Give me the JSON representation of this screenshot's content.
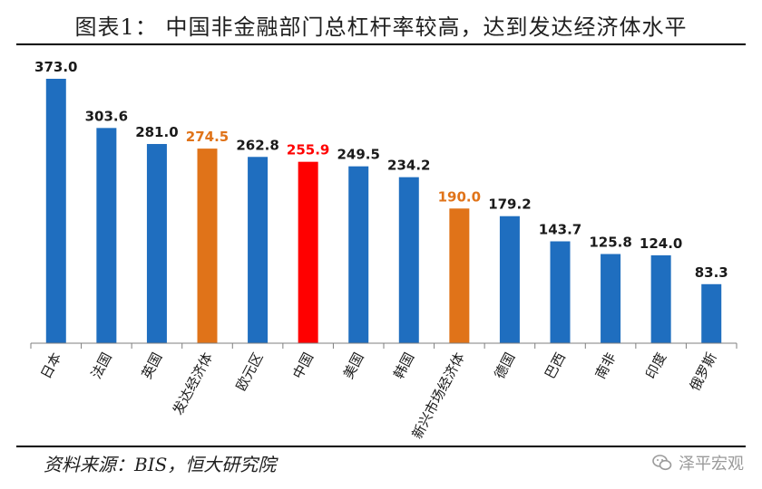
{
  "header": {
    "title": "图表1：  中国非金融部门总杠杆率较高，达到发达经济体水平"
  },
  "footer": {
    "source": "资料来源：BIS，恒大研究院",
    "brand": "泽平宏观"
  },
  "icons": {
    "brand_icon": "wechat-icon"
  },
  "colors": {
    "default": "#1f6ebf",
    "group": "#e07319",
    "china": "#ff0000",
    "axis": "#7f7f7f"
  },
  "chart_data": {
    "type": "bar",
    "title": "中国非金融部门总杠杆率较高，达到发达经济体水平",
    "xlabel": "",
    "ylabel": "",
    "ylim": [
      0,
      380
    ],
    "categories": [
      "日本",
      "法国",
      "英国",
      "发达经济体",
      "欧元区",
      "中国",
      "美国",
      "韩国",
      "新兴市场经济体",
      "德国",
      "巴西",
      "南非",
      "印度",
      "俄罗斯"
    ],
    "values": [
      373.0,
      303.6,
      281.0,
      274.5,
      262.8,
      255.9,
      249.5,
      234.2,
      190.0,
      179.2,
      143.7,
      125.8,
      124.0,
      83.3
    ],
    "labels": [
      "373.0",
      "303.6",
      "281.0",
      "274.5",
      "262.8",
      "255.9",
      "249.5",
      "234.2",
      "190.0",
      "179.2",
      "143.7",
      "125.8",
      "124.0",
      "83.3"
    ],
    "highlight": [
      "default",
      "default",
      "default",
      "group",
      "default",
      "china",
      "default",
      "default",
      "group",
      "default",
      "default",
      "default",
      "default",
      "default"
    ]
  }
}
